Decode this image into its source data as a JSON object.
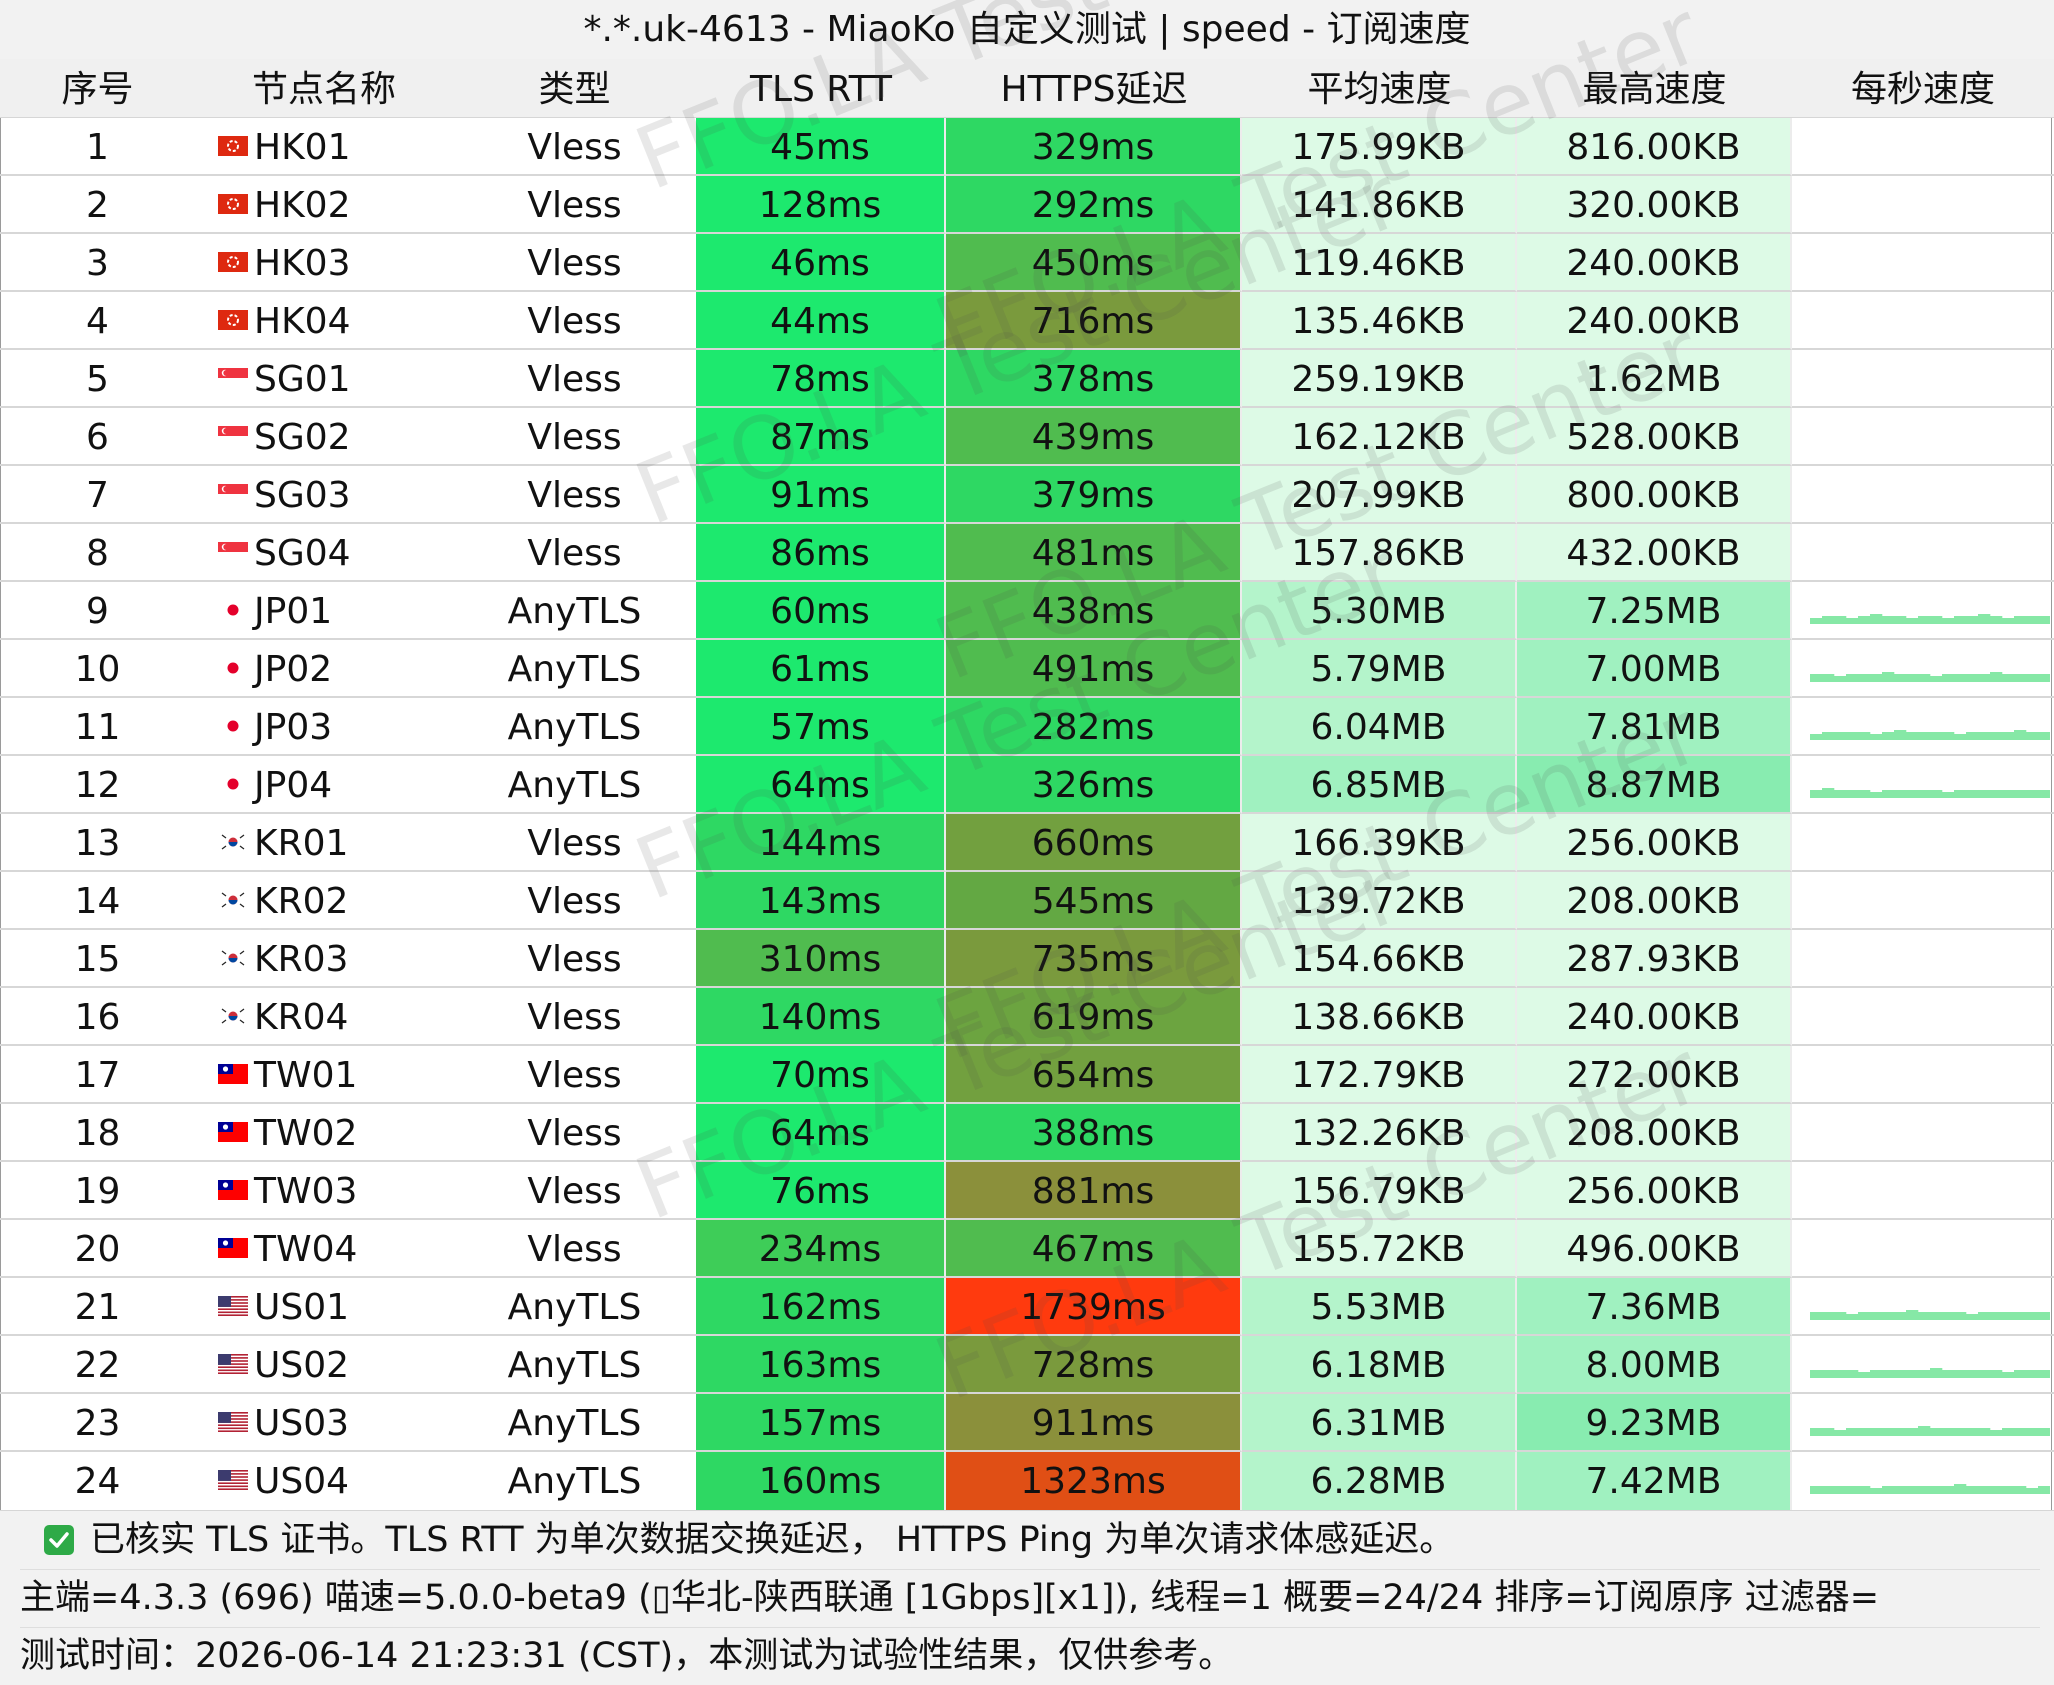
{
  "window": {
    "title": "*.*.uk-4613 - MiaoKo 自定义测试 | speed - 订阅速度"
  },
  "watermark": "FFO.LA Test Center",
  "columns": [
    "序号",
    "节点名称",
    "类型",
    "TLS RTT",
    "HTTPS延迟",
    "平均速度",
    "最高速度",
    "每秒速度"
  ],
  "rows": [
    {
      "idx": "1",
      "flag": "hk",
      "name": "HK01",
      "type": "Vless",
      "tls": "45ms",
      "https": "329ms",
      "avg": "175.99KB",
      "max": "816.00KB",
      "tls_color": "#1de96e",
      "https_color": "#2ed863",
      "avg_color": "#ddfae6",
      "max_color": "#ddfae6",
      "sparkline": []
    },
    {
      "idx": "2",
      "flag": "hk",
      "name": "HK02",
      "type": "Vless",
      "tls": "128ms",
      "https": "292ms",
      "avg": "141.86KB",
      "max": "320.00KB",
      "tls_color": "#1de96e",
      "https_color": "#2ed863",
      "avg_color": "#ddfae6",
      "max_color": "#ddfae6",
      "sparkline": []
    },
    {
      "idx": "3",
      "flag": "hk",
      "name": "HK03",
      "type": "Vless",
      "tls": "46ms",
      "https": "450ms",
      "avg": "119.46KB",
      "max": "240.00KB",
      "tls_color": "#1de96e",
      "https_color": "#50bc4f",
      "avg_color": "#ddfae6",
      "max_color": "#ddfae6",
      "sparkline": []
    },
    {
      "idx": "4",
      "flag": "hk",
      "name": "HK04",
      "type": "Vless",
      "tls": "44ms",
      "https": "716ms",
      "avg": "135.46KB",
      "max": "240.00KB",
      "tls_color": "#1de96e",
      "https_color": "#7a9a3d",
      "avg_color": "#ddfae6",
      "max_color": "#ddfae6",
      "sparkline": []
    },
    {
      "idx": "5",
      "flag": "sg",
      "name": "SG01",
      "type": "Vless",
      "tls": "78ms",
      "https": "378ms",
      "avg": "259.19KB",
      "max": "1.62MB",
      "tls_color": "#1de96e",
      "https_color": "#2ed863",
      "avg_color": "#ddfae6",
      "max_color": "#ddfae6",
      "sparkline": []
    },
    {
      "idx": "6",
      "flag": "sg",
      "name": "SG02",
      "type": "Vless",
      "tls": "87ms",
      "https": "439ms",
      "avg": "162.12KB",
      "max": "528.00KB",
      "tls_color": "#1de96e",
      "https_color": "#50bc4f",
      "avg_color": "#ddfae6",
      "max_color": "#ddfae6",
      "sparkline": []
    },
    {
      "idx": "7",
      "flag": "sg",
      "name": "SG03",
      "type": "Vless",
      "tls": "91ms",
      "https": "379ms",
      "avg": "207.99KB",
      "max": "800.00KB",
      "tls_color": "#1de96e",
      "https_color": "#2ed863",
      "avg_color": "#ddfae6",
      "max_color": "#ddfae6",
      "sparkline": []
    },
    {
      "idx": "8",
      "flag": "sg",
      "name": "SG04",
      "type": "Vless",
      "tls": "86ms",
      "https": "481ms",
      "avg": "157.86KB",
      "max": "432.00KB",
      "tls_color": "#1de96e",
      "https_color": "#50bc4f",
      "avg_color": "#ddfae6",
      "max_color": "#ddfae6",
      "sparkline": []
    },
    {
      "idx": "9",
      "flag": "jp",
      "name": "JP01",
      "type": "AnyTLS",
      "tls": "60ms",
      "https": "438ms",
      "avg": "5.30MB",
      "max": "7.25MB",
      "tls_color": "#1de96e",
      "https_color": "#50bc4f",
      "avg_color": "#b4f4cb",
      "max_color": "#a0f1c0",
      "sparkline": [
        2,
        3,
        3,
        2,
        3,
        4,
        3,
        3,
        2,
        3,
        3,
        2,
        3,
        3,
        4,
        3,
        2,
        3,
        3,
        3
      ]
    },
    {
      "idx": "10",
      "flag": "jp",
      "name": "JP02",
      "type": "AnyTLS",
      "tls": "61ms",
      "https": "491ms",
      "avg": "5.79MB",
      "max": "7.00MB",
      "tls_color": "#1de96e",
      "https_color": "#50bc4f",
      "avg_color": "#b4f4cb",
      "max_color": "#a0f1c0",
      "sparkline": [
        3,
        3,
        2,
        3,
        3,
        3,
        4,
        3,
        3,
        3,
        2,
        3,
        3,
        3,
        3,
        4,
        3,
        3,
        3,
        3
      ]
    },
    {
      "idx": "11",
      "flag": "jp",
      "name": "JP03",
      "type": "AnyTLS",
      "tls": "57ms",
      "https": "282ms",
      "avg": "6.04MB",
      "max": "7.81MB",
      "tls_color": "#1de96e",
      "https_color": "#2ed863",
      "avg_color": "#b4f4cb",
      "max_color": "#a0f1c0",
      "sparkline": [
        2,
        3,
        3,
        3,
        3,
        2,
        3,
        4,
        3,
        3,
        3,
        3,
        2,
        3,
        3,
        3,
        3,
        4,
        3,
        3
      ]
    },
    {
      "idx": "12",
      "flag": "jp",
      "name": "JP04",
      "type": "AnyTLS",
      "tls": "64ms",
      "https": "326ms",
      "avg": "6.85MB",
      "max": "8.87MB",
      "tls_color": "#1de96e",
      "https_color": "#2ed863",
      "avg_color": "#a0f1c0",
      "max_color": "#88ecb0",
      "sparkline": [
        3,
        4,
        3,
        3,
        3,
        2,
        3,
        3,
        3,
        3,
        3,
        2,
        3,
        3,
        3,
        3,
        3,
        3,
        3,
        3
      ]
    },
    {
      "idx": "13",
      "flag": "kr",
      "name": "KR01",
      "type": "Vless",
      "tls": "144ms",
      "https": "660ms",
      "avg": "166.39KB",
      "max": "256.00KB",
      "tls_color": "#2ed863",
      "https_color": "#72a03f",
      "avg_color": "#ddfae6",
      "max_color": "#ddfae6",
      "sparkline": []
    },
    {
      "idx": "14",
      "flag": "kr",
      "name": "KR02",
      "type": "Vless",
      "tls": "143ms",
      "https": "545ms",
      "avg": "139.72KB",
      "max": "208.00KB",
      "tls_color": "#2ed863",
      "https_color": "#63a843",
      "avg_color": "#ddfae6",
      "max_color": "#ddfae6",
      "sparkline": []
    },
    {
      "idx": "15",
      "flag": "kr",
      "name": "KR03",
      "type": "Vless",
      "tls": "310ms",
      "https": "735ms",
      "avg": "154.66KB",
      "max": "287.93KB",
      "tls_color": "#50bc4f",
      "https_color": "#7a9a3d",
      "avg_color": "#ddfae6",
      "max_color": "#ddfae6",
      "sparkline": []
    },
    {
      "idx": "16",
      "flag": "kr",
      "name": "KR04",
      "type": "Vless",
      "tls": "140ms",
      "https": "619ms",
      "avg": "138.66KB",
      "max": "240.00KB",
      "tls_color": "#2ed863",
      "https_color": "#6ca440",
      "avg_color": "#ddfae6",
      "max_color": "#ddfae6",
      "sparkline": []
    },
    {
      "idx": "17",
      "flag": "tw",
      "name": "TW01",
      "type": "Vless",
      "tls": "70ms",
      "https": "654ms",
      "avg": "172.79KB",
      "max": "272.00KB",
      "tls_color": "#1de96e",
      "https_color": "#72a03f",
      "avg_color": "#ddfae6",
      "max_color": "#ddfae6",
      "sparkline": []
    },
    {
      "idx": "18",
      "flag": "tw",
      "name": "TW02",
      "type": "Vless",
      "tls": "64ms",
      "https": "388ms",
      "avg": "132.26KB",
      "max": "208.00KB",
      "tls_color": "#1de96e",
      "https_color": "#2ed863",
      "avg_color": "#ddfae6",
      "max_color": "#ddfae6",
      "sparkline": []
    },
    {
      "idx": "19",
      "flag": "tw",
      "name": "TW03",
      "type": "Vless",
      "tls": "76ms",
      "https": "881ms",
      "avg": "156.79KB",
      "max": "256.00KB",
      "tls_color": "#1de96e",
      "https_color": "#8b903b",
      "avg_color": "#ddfae6",
      "max_color": "#ddfae6",
      "sparkline": []
    },
    {
      "idx": "20",
      "flag": "tw",
      "name": "TW04",
      "type": "Vless",
      "tls": "234ms",
      "https": "467ms",
      "avg": "155.72KB",
      "max": "496.00KB",
      "tls_color": "#3ecd58",
      "https_color": "#50bc4f",
      "avg_color": "#ddfae6",
      "max_color": "#ddfae6",
      "sparkline": []
    },
    {
      "idx": "21",
      "flag": "us",
      "name": "US01",
      "type": "AnyTLS",
      "tls": "162ms",
      "https": "1739ms",
      "avg": "5.53MB",
      "max": "7.36MB",
      "tls_color": "#2ed863",
      "https_color": "#ff3a0e",
      "avg_color": "#b4f4cb",
      "max_color": "#a0f1c0",
      "sparkline": [
        3,
        3,
        3,
        2,
        3,
        3,
        3,
        3,
        4,
        3,
        3,
        3,
        3,
        2,
        3,
        3,
        3,
        3,
        3,
        3
      ]
    },
    {
      "idx": "22",
      "flag": "us",
      "name": "US02",
      "type": "AnyTLS",
      "tls": "163ms",
      "https": "728ms",
      "avg": "6.18MB",
      "max": "8.00MB",
      "tls_color": "#2ed863",
      "https_color": "#7a9a3d",
      "avg_color": "#b4f4cb",
      "max_color": "#a0f1c0",
      "sparkline": [
        3,
        3,
        3,
        3,
        2,
        3,
        3,
        3,
        3,
        3,
        4,
        3,
        3,
        3,
        3,
        3,
        2,
        3,
        3,
        3
      ]
    },
    {
      "idx": "23",
      "flag": "us",
      "name": "US03",
      "type": "AnyTLS",
      "tls": "157ms",
      "https": "911ms",
      "avg": "6.31MB",
      "max": "9.23MB",
      "tls_color": "#2ed863",
      "https_color": "#8b903b",
      "avg_color": "#b4f4cb",
      "max_color": "#88ecb0",
      "sparkline": [
        3,
        3,
        2,
        3,
        3,
        3,
        3,
        3,
        3,
        4,
        3,
        3,
        3,
        3,
        3,
        2,
        3,
        3,
        3,
        3
      ]
    },
    {
      "idx": "24",
      "flag": "us",
      "name": "US04",
      "type": "AnyTLS",
      "tls": "160ms",
      "https": "1323ms",
      "avg": "6.28MB",
      "max": "7.42MB",
      "tls_color": "#2ed863",
      "https_color": "#e04f15",
      "avg_color": "#b4f4cb",
      "max_color": "#a0f1c0",
      "sparkline": [
        3,
        3,
        3,
        3,
        3,
        2,
        3,
        3,
        3,
        3,
        3,
        3,
        4,
        3,
        3,
        3,
        3,
        3,
        2,
        3
      ]
    }
  ],
  "footer": {
    "check_icon": "checkbox-checked-icon",
    "note": "已核实 TLS 证书。TLS RTT 为单次数据交换延迟，  HTTPS Ping 为单次请求体感延迟。",
    "info": "主端=4.3.3 (696) 喵速=5.0.0-beta9 (▯华北-陕西联通 [1Gbps][x1]), 线程=1 概要=24/24 排序=订阅原序 过滤器=",
    "time": "测试时间：2026-06-14 21:23:31 (CST)，本测试为试验性结果，仅供参考。"
  }
}
